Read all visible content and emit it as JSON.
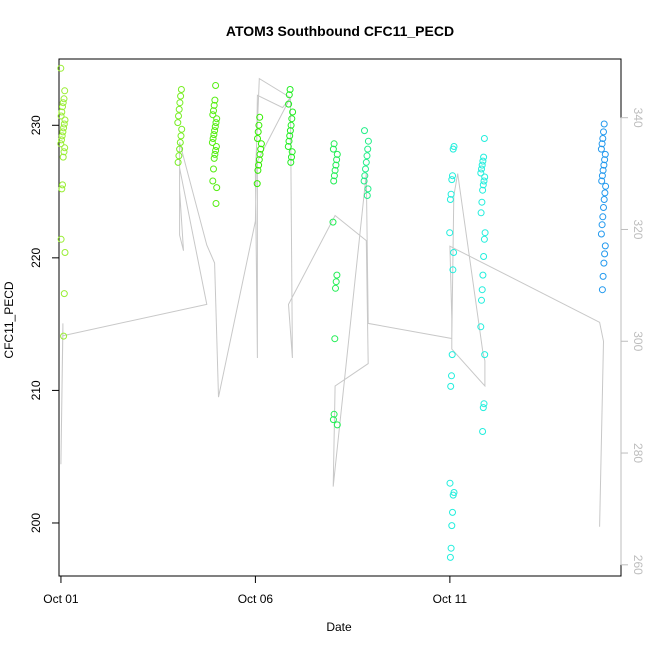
{
  "chart_data": {
    "type": "scatter",
    "title": "ATOM3 Southbound CFC11_PECD",
    "xlabel": "Date",
    "ylabel": "CFC11_PECD",
    "x_axis": {
      "unit": "day of October",
      "range": [
        0.95,
        15.4
      ],
      "ticks": [
        1,
        6,
        11
      ],
      "tick_labels": [
        "Oct 01",
        "Oct 06",
        "Oct 11"
      ]
    },
    "y_axis": {
      "range": [
        196,
        235
      ],
      "ticks": [
        200,
        210,
        220,
        230
      ],
      "tick_labels": [
        "200",
        "210",
        "220",
        "230"
      ]
    },
    "y2_axis": {
      "range": [
        258,
        350.5
      ],
      "ticks": [
        260,
        280,
        300,
        320,
        340
      ],
      "tick_labels": [
        "260",
        "280",
        "300",
        "320",
        "340"
      ],
      "color": "#bdbdbd"
    },
    "grid": false,
    "legend": "none",
    "point_series": [
      {
        "x_center": 1.05,
        "color": "#99ee33",
        "y": [
          234.3,
          232.6,
          232.0,
          231.7,
          231.4,
          231.0,
          230.7,
          230.4,
          230.1,
          229.8,
          229.5,
          229.2,
          228.9,
          228.6,
          228.3,
          228.0,
          227.6,
          225.5,
          225.2,
          221.4,
          220.4,
          217.3,
          214.1
        ]
      },
      {
        "x_center": 4.05,
        "color": "#77ee22",
        "y": [
          232.7,
          232.2,
          231.7,
          231.2,
          230.7,
          230.2,
          229.7,
          229.2,
          228.7,
          228.2,
          227.7,
          227.2
        ]
      },
      {
        "x_center": 4.95,
        "color": "#55ee11",
        "y": [
          233.0,
          231.9,
          231.5,
          231.1,
          230.8,
          230.5,
          230.2,
          229.9,
          229.6,
          229.3,
          229.0,
          228.7,
          228.4,
          228.1,
          227.8,
          227.5,
          226.7,
          225.8,
          225.3,
          224.1
        ]
      },
      {
        "x_center": 6.1,
        "color": "#33ee00",
        "y": [
          230.6,
          230.0,
          229.5,
          229.0,
          228.6,
          228.2,
          227.8,
          227.4,
          227.0,
          226.6,
          225.6
        ]
      },
      {
        "x_center": 6.9,
        "color": "#22ee22",
        "y": [
          232.7,
          232.3,
          231.6,
          231.0,
          230.5,
          230.0,
          229.6,
          229.2,
          228.8,
          228.4,
          228.0,
          227.6,
          227.2
        ]
      },
      {
        "x_center": 8.05,
        "color": "#22ee55",
        "y": [
          228.6,
          228.2,
          227.8,
          227.4,
          227.0,
          226.6,
          226.2,
          225.8,
          222.7,
          218.7,
          218.2,
          217.7,
          213.9,
          208.2,
          207.8,
          207.4
        ]
      },
      {
        "x_center": 8.85,
        "color": "#22ee88",
        "y": [
          229.6,
          228.8,
          228.2,
          227.7,
          227.2,
          226.7,
          226.2,
          225.8,
          225.2,
          224.7
        ]
      },
      {
        "x_center": 11.05,
        "color": "#22eedd",
        "y": [
          228.4,
          228.2,
          226.2,
          225.9,
          224.8,
          224.4,
          221.9,
          220.4,
          219.1,
          212.7,
          211.1,
          210.3,
          203.0,
          202.3,
          202.1,
          200.8,
          199.8,
          198.1,
          197.4
        ]
      },
      {
        "x_center": 11.85,
        "color": "#22eedd",
        "y": [
          229.0,
          227.6,
          227.3,
          227.0,
          226.7,
          226.4,
          226.1,
          225.8,
          225.5,
          225.1,
          224.2,
          223.4,
          221.9,
          221.4,
          220.1,
          218.7,
          217.6,
          216.8,
          214.8,
          212.7,
          209.0,
          208.7,
          206.9
        ]
      },
      {
        "x_center": 14.95,
        "color": "#2299ee",
        "y": [
          230.1,
          229.5,
          229.0,
          228.6,
          228.2,
          227.8,
          227.4,
          227.0,
          226.6,
          226.2,
          225.8,
          225.4,
          224.9,
          224.4,
          223.8,
          223.1,
          222.5,
          221.8,
          220.9,
          220.3,
          219.6,
          218.6,
          217.6
        ]
      }
    ],
    "line_series": {
      "name": "",
      "axis": "y2",
      "color": "#c8c8c8",
      "x": [
        1.05,
        1.0,
        1.05,
        1.05,
        4.75,
        4.05,
        4.05,
        4.05,
        4.15,
        4.05,
        4.05,
        4.75,
        4.95,
        5.05,
        6.0,
        6.05,
        6.7,
        6.9,
        6.05,
        6.05,
        6.0,
        6.1,
        6.9,
        6.95,
        6.85,
        8.05,
        8.85,
        8.9,
        8.05,
        8.0,
        8.85,
        8.9,
        11.05,
        11.1,
        11.2,
        11.85,
        11.9,
        11.9,
        11.05,
        11.05,
        11.0,
        14.85,
        14.95,
        14.85
      ],
      "y": [
        302.0,
        278.0,
        303.2,
        301.0,
        306.6,
        331.0,
        325.0,
        319.0,
        316.2,
        327.0,
        335.6,
        317.2,
        314.0,
        290.0,
        321.5,
        344.0,
        341.8,
        343.6,
        332.2,
        297.0,
        330.0,
        347.0,
        343.6,
        297.0,
        306.6,
        322.5,
        318.0,
        296.0,
        292.0,
        274.0,
        330.0,
        303.2,
        300.5,
        326.0,
        330.0,
        298.0,
        296.5,
        292.0,
        298.6,
        304.0,
        317.0,
        303.4,
        300.0,
        266.8
      ]
    }
  }
}
